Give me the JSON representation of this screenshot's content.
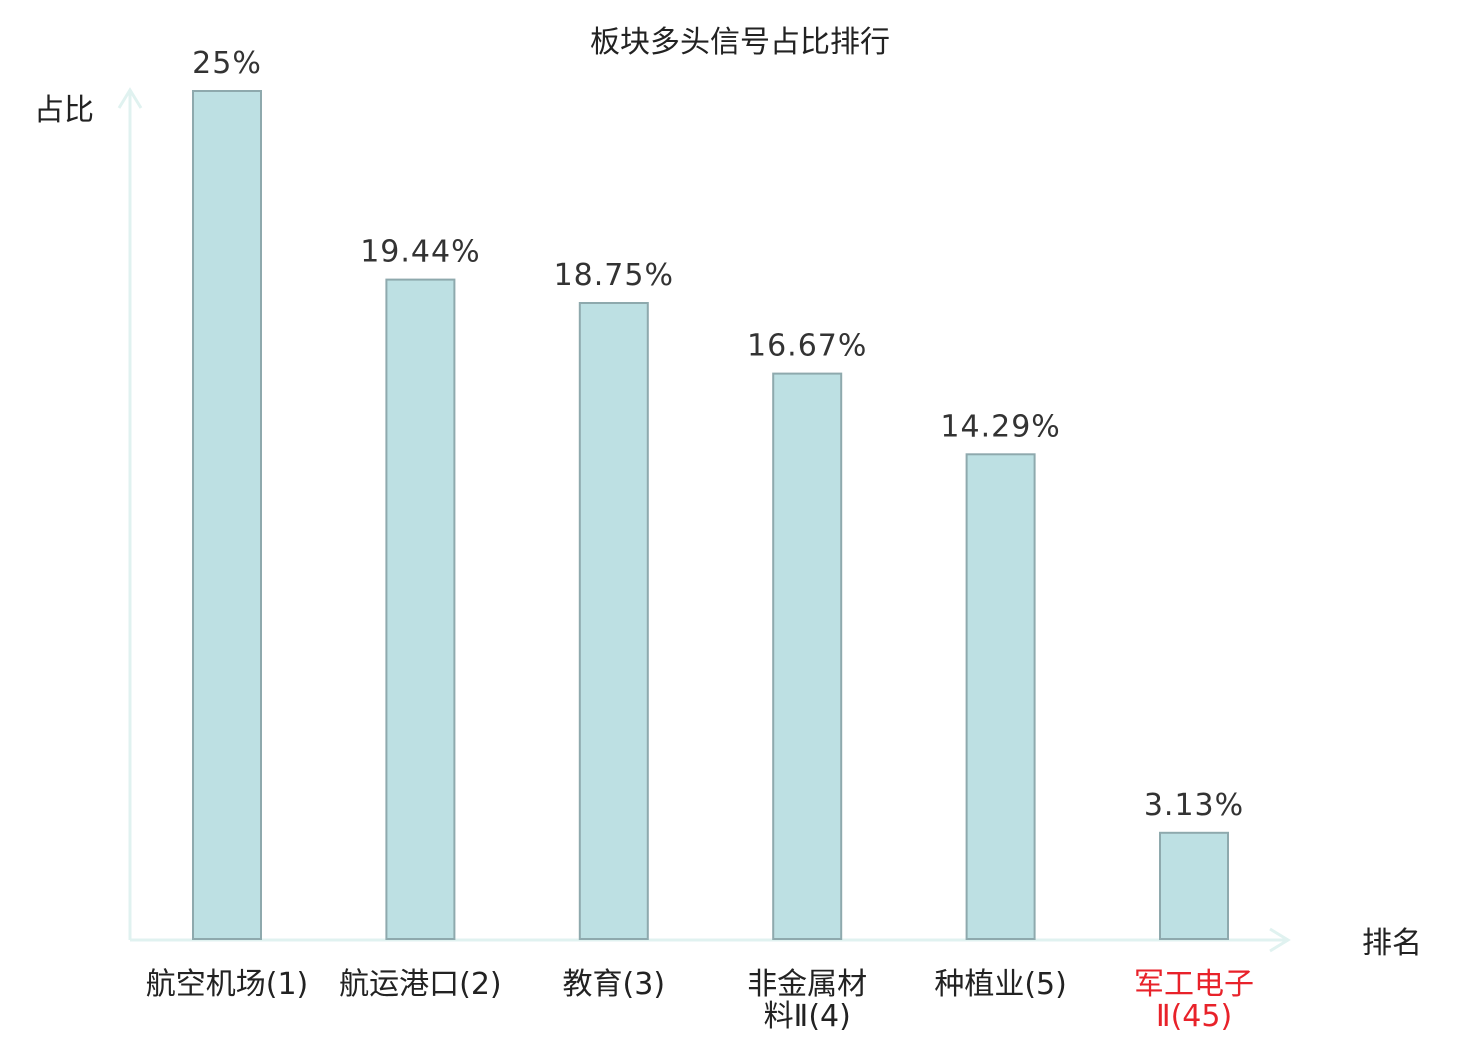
{
  "chart_data": {
    "type": "bar",
    "title": "板块多头信号占比排行",
    "xlabel": "排名",
    "ylabel": "占比",
    "categories": [
      {
        "lines": [
          "航空机场(1)"
        ],
        "highlight": false
      },
      {
        "lines": [
          "航运港口(2)"
        ],
        "highlight": false
      },
      {
        "lines": [
          "教育(3)"
        ],
        "highlight": false
      },
      {
        "lines": [
          "非金属材",
          "料Ⅱ(4)"
        ],
        "highlight": false
      },
      {
        "lines": [
          "种植业(5)"
        ],
        "highlight": false
      },
      {
        "lines": [
          "军工电子",
          "Ⅱ(45)"
        ],
        "highlight": true
      }
    ],
    "values": [
      25,
      19.44,
      18.75,
      16.67,
      14.29,
      3.13
    ],
    "value_labels": [
      "25%",
      "19.44%",
      "18.75%",
      "16.67%",
      "14.29%",
      "3.13%"
    ],
    "ylim": [
      0,
      25
    ],
    "grid": false,
    "legend": "none",
    "colors": {
      "bar_fill": "#bde0e3",
      "bar_stroke": "#8ea9ad",
      "axis": "#e0f2f0",
      "text": "#333333",
      "highlight_text": "#e8222a"
    }
  }
}
